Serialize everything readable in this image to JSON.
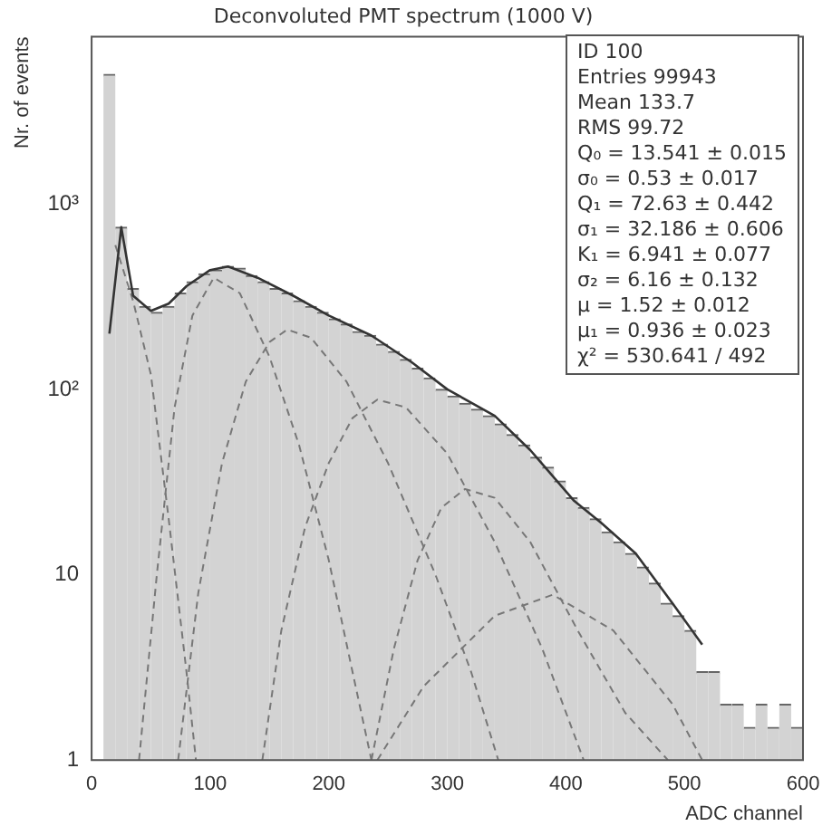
{
  "chart_data": {
    "type": "histogram",
    "title": "Deconvoluted PMT spectrum (1000 V)",
    "xlabel": "ADC channel",
    "ylabel": "Nr. of events",
    "bins": [
      10,
      20,
      30,
      40,
      50,
      60,
      70,
      80,
      90,
      100,
      110,
      120,
      130,
      140,
      150,
      160,
      170,
      180,
      190,
      200,
      210,
      220,
      230,
      240,
      250,
      260,
      270,
      280,
      290,
      300,
      310,
      320,
      330,
      340,
      350,
      360,
      370,
      380,
      390,
      400,
      410,
      420,
      430,
      440,
      450,
      460,
      470,
      480,
      490,
      500,
      510,
      520,
      530,
      540,
      550,
      560,
      570,
      580,
      590,
      600
    ],
    "values": [
      5000,
      750,
      350,
      280,
      260,
      280,
      330,
      380,
      420,
      440,
      460,
      450,
      410,
      380,
      350,
      330,
      300,
      280,
      260,
      240,
      225,
      205,
      195,
      175,
      160,
      145,
      130,
      115,
      100,
      92,
      84,
      78,
      72,
      65,
      57,
      50,
      43,
      38,
      32,
      26,
      23,
      20,
      17,
      15,
      13,
      11,
      9,
      7,
      6,
      5,
      3,
      3,
      2,
      2,
      1.5,
      2,
      1.5,
      2,
      1.5
    ],
    "color": "#d3d3d3",
    "series": [
      {
        "type": "line",
        "color": "#333333",
        "x": [
          15,
          25,
          35,
          50,
          65,
          80,
          100,
          115,
          140,
          170,
          200,
          236,
          270,
          300,
          340,
          370,
          407,
          430,
          459,
          490,
          515
        ],
        "values": [
          200,
          750,
          320,
          265,
          290,
          360,
          440,
          460,
          400,
          320,
          250,
          195,
          140,
          100,
          72,
          47,
          25,
          19,
          13,
          7,
          4.2
        ]
      },
      {
        "type": "line",
        "color": "#777777",
        "line_style": "dashed",
        "x": [
          20,
          35,
          50,
          65,
          80,
          88
        ],
        "values": [
          600,
          300,
          120,
          20,
          3,
          1
        ]
      },
      {
        "type": "line",
        "color": "#777777",
        "line_style": "dashed",
        "x": [
          40,
          55,
          70,
          85,
          103,
          125,
          150,
          175,
          200,
          220,
          236
        ],
        "values": [
          1,
          10,
          80,
          250,
          400,
          330,
          150,
          50,
          12,
          3,
          1
        ]
      },
      {
        "type": "line",
        "color": "#777777",
        "line_style": "dashed",
        "x": [
          73,
          90,
          110,
          130,
          150,
          165,
          185,
          215,
          250,
          290,
          320,
          343
        ],
        "values": [
          1,
          8,
          40,
          110,
          180,
          210,
          190,
          110,
          40,
          10,
          3,
          1
        ]
      },
      {
        "type": "line",
        "color": "#777777",
        "line_style": "dashed",
        "x": [
          144,
          160,
          180,
          200,
          220,
          241,
          265,
          300,
          340,
          380,
          415
        ],
        "values": [
          1,
          5,
          18,
          40,
          70,
          88,
          80,
          45,
          15,
          4,
          1
        ]
      },
      {
        "type": "line",
        "color": "#777777",
        "line_style": "dashed",
        "x": [
          236,
          255,
          275,
          295,
          315,
          340,
          370,
          410,
          450,
          486
        ],
        "values": [
          1,
          4,
          12,
          23,
          29,
          26,
          15,
          5,
          1.8,
          1
        ]
      },
      {
        "type": "line",
        "color": "#777777",
        "line_style": "dashed",
        "x": [
          241,
          280,
          340,
          389,
          440,
          490,
          515
        ],
        "values": [
          1,
          2.5,
          6,
          7.8,
          5,
          2,
          1
        ]
      }
    ],
    "log": "y",
    "xlim": [
      0,
      600
    ],
    "xticks": [
      0,
      100,
      200,
      300,
      400,
      500,
      600
    ],
    "ylim": [
      1,
      8000
    ],
    "yticks": [
      1,
      10,
      {
        "value": 100,
        "label": "10²"
      },
      {
        "value": 1000,
        "label": "10³"
      }
    ],
    "grid": false,
    "legend": false,
    "annotations": [
      "ID 100",
      "Entries 99943",
      "Mean 133.7",
      "RMS 99.72",
      "Q₀ = 13.541 ± 0.015",
      "σ₀ = 0.53 ± 0.017",
      "Q₁ = 72.63 ± 0.442",
      "σ₁ = 32.186 ± 0.606",
      "K₁ = 6.941 ± 0.077",
      "σ₂ = 6.16 ± 0.132",
      "μ = 1.52 ± 0.012",
      "μ₁ = 0.936 ± 0.023",
      "χ² = 530.641 / 492"
    ]
  }
}
